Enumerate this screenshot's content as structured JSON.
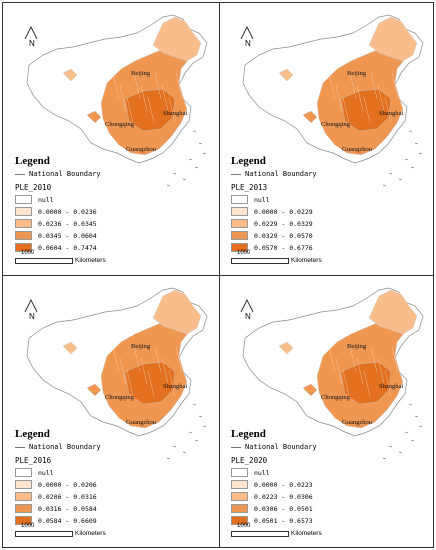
{
  "legend_title": "Legend",
  "boundary_label": "National Boundary",
  "north_label": "N",
  "scale_value": "1000",
  "scale_unit": "Kilometers",
  "null_label": "null",
  "cities": [
    "Beijing",
    "Shanghai",
    "Chongqing",
    "Guangzhou"
  ],
  "colors": [
    "#ffffff",
    "#fde4cc",
    "#f8bd8a",
    "#ef9651",
    "#e3701e"
  ],
  "panels": [
    {
      "variable": "PLE_2010",
      "classes": [
        "0.0000 - 0.0236",
        "0.0236 - 0.0345",
        "0.0345 - 0.0604",
        "0.0604 - 0.7474"
      ]
    },
    {
      "variable": "PLE_2013",
      "classes": [
        "0.0000 - 0.0229",
        "0.0229 - 0.0329",
        "0.0329 - 0.0570",
        "0.0570 - 0.6776"
      ]
    },
    {
      "variable": "PLE_2016",
      "classes": [
        "0.0000 - 0.0206",
        "0.0206 - 0.0316",
        "0.0316 - 0.0584",
        "0.0584 - 0.6609"
      ]
    },
    {
      "variable": "PLE_2020",
      "classes": [
        "0.0000 - 0.0223",
        "0.0223 - 0.0306",
        "0.0306 - 0.0501",
        "0.0501 - 0.6573"
      ]
    }
  ]
}
